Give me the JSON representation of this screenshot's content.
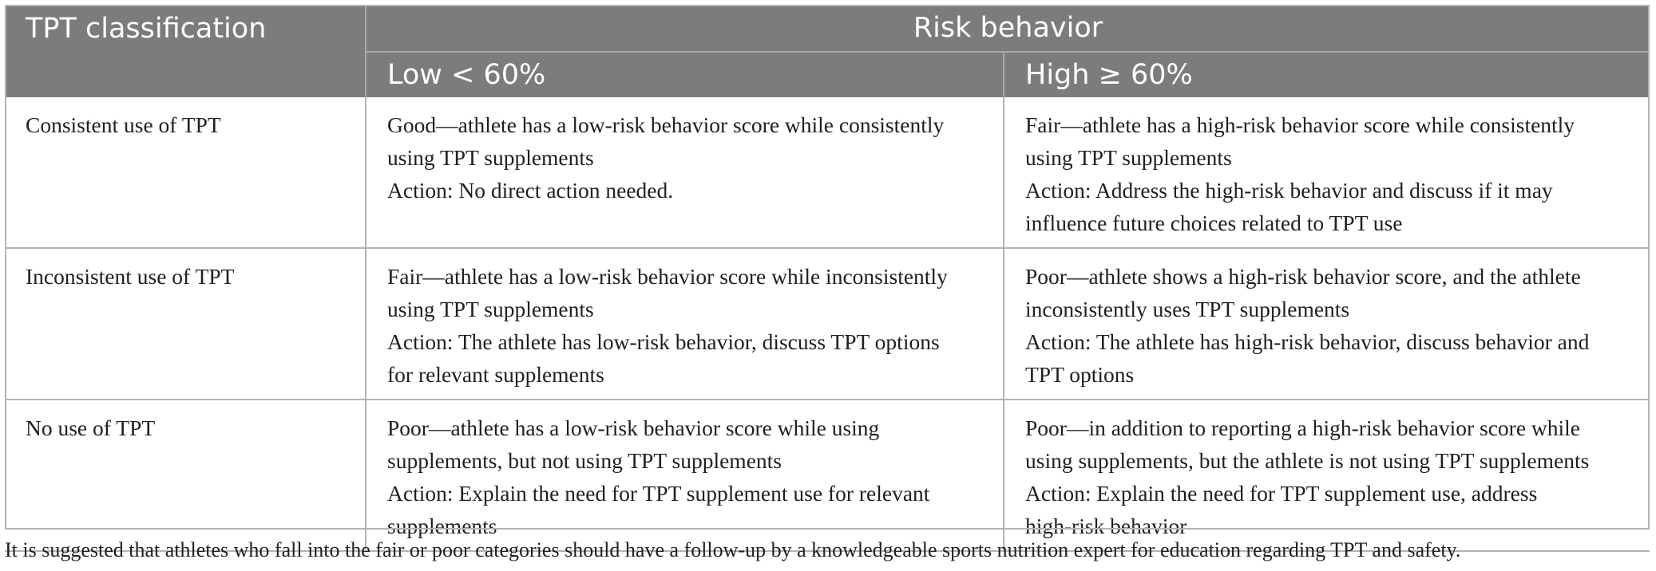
{
  "table": {
    "header": {
      "col1": "TPT classification",
      "group": "Risk behavior",
      "low": "Low < 60%",
      "high": "High ≥ 60%"
    },
    "rows": [
      {
        "classification": "Consistent use of TPT",
        "low_lines": [
          "Good—athlete has a low-risk behavior score while consistently",
          "using TPT supplements",
          "Action: No direct action needed."
        ],
        "high_lines": [
          "Fair—athlete has a high-risk behavior score while consistently",
          "using TPT supplements",
          "Action: Address the high-risk behavior and discuss if it may",
          "influence future choices related to TPT use"
        ]
      },
      {
        "classification": "Inconsistent use of TPT",
        "low_lines": [
          "Fair—athlete has a low-risk behavior score while inconsistently",
          "using TPT supplements",
          "Action: The athlete has low-risk behavior, discuss TPT options",
          "for relevant supplements"
        ],
        "high_lines": [
          "Poor—athlete shows a high-risk behavior score, and the athlete",
          "inconsistently uses TPT supplements",
          "Action: The athlete has high-risk behavior, discuss behavior and",
          "TPT options"
        ]
      },
      {
        "classification": "No use of TPT",
        "low_lines": [
          "Poor—athlete has a low-risk behavior score while using",
          "supplements, but not using TPT supplements",
          "Action: Explain the need for TPT supplement use for relevant",
          "supplements"
        ],
        "high_lines": [
          "Poor—in addition to reporting a high-risk behavior score while",
          "using supplements, but the athlete is not using TPT supplements",
          "Action: Explain the need for TPT supplement use, address",
          "high-risk behavior"
        ]
      }
    ]
  },
  "footnote": "It is suggested that athletes who fall into the fair or poor categories should have a follow-up by a knowledgeable sports nutrition expert for education regarding TPT and safety.",
  "colors": {
    "header_bg": "#7c7c7c",
    "header_text": "#ffffff",
    "grid": "#b3b3b3",
    "body_text": "#1f1f1f"
  }
}
